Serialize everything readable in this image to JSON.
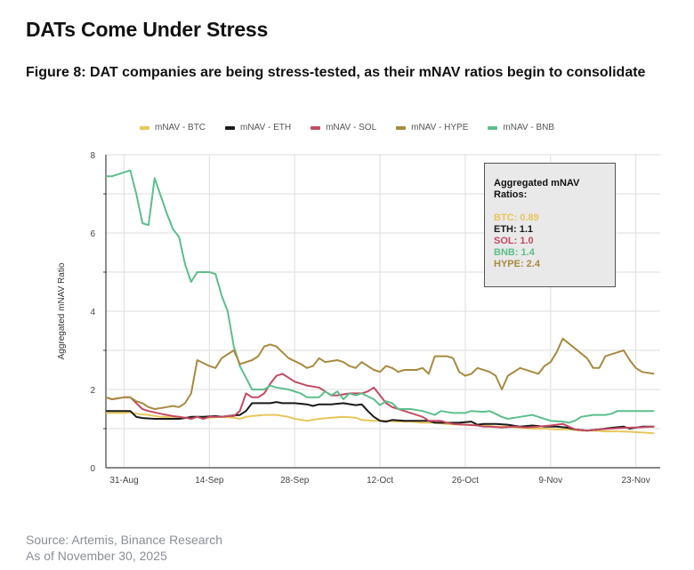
{
  "page": {
    "title": "DATs Come Under Stress",
    "figure_title": "Figure 8: DAT companies are being stress-tested, as their mNAV ratios begin to consolidate",
    "source_line1": "Source: Artemis, Binance Research",
    "source_line2": "As of November 30, 2025"
  },
  "annotation": {
    "title": "Aggregated mNAV Ratios:",
    "lines": [
      {
        "text": "BTC: 0.89",
        "color": "#e8c65a"
      },
      {
        "text": "ETH: 1.1",
        "color": "#1a1a1a"
      },
      {
        "text": "SOL: 1.0",
        "color": "#c44a62"
      },
      {
        "text": "BNB: 1.4",
        "color": "#5cbf8a"
      },
      {
        "text": "HYPE: 2.4",
        "color": "#a88a3e"
      }
    ]
  },
  "chart_data": {
    "type": "line",
    "title": "",
    "xlabel": "",
    "ylabel": "Aggregated mNAV Ratio",
    "ylim": [
      0,
      8
    ],
    "yticks": [
      0,
      2,
      4,
      6,
      8
    ],
    "y_minor_ticks": [
      1,
      3,
      5,
      7
    ],
    "grid": true,
    "legend_position": "top-center",
    "x_base_date": "2025-08-28",
    "x_range_days": [
      0,
      91
    ],
    "xticks": [
      {
        "day": 3,
        "label": "31-Aug"
      },
      {
        "day": 17,
        "label": "14-Sep"
      },
      {
        "day": 31,
        "label": "28-Sep"
      },
      {
        "day": 45,
        "label": "12-Oct"
      },
      {
        "day": 59,
        "label": "26-Oct"
      },
      {
        "day": 73,
        "label": "9-Nov"
      },
      {
        "day": 87,
        "label": "23-Nov"
      }
    ],
    "series": [
      {
        "name": "mNAV - BTC",
        "color": "#e8c65a",
        "days": [
          0,
          3,
          4,
          5,
          7,
          9,
          11,
          13,
          15,
          17,
          19,
          21,
          22,
          23,
          24,
          26,
          28,
          30,
          31,
          33,
          35,
          37,
          39,
          41,
          42,
          44,
          46,
          48,
          50,
          52,
          54,
          56,
          58,
          60,
          62,
          64,
          66,
          68,
          70,
          72,
          74,
          76,
          78,
          80,
          82,
          84,
          86,
          88,
          90
        ],
        "values": [
          1.4,
          1.4,
          1.42,
          1.38,
          1.35,
          1.3,
          1.3,
          1.28,
          1.3,
          1.28,
          1.3,
          1.28,
          1.25,
          1.3,
          1.32,
          1.35,
          1.35,
          1.3,
          1.25,
          1.2,
          1.25,
          1.28,
          1.3,
          1.28,
          1.22,
          1.2,
          1.2,
          1.18,
          1.18,
          1.15,
          1.15,
          1.12,
          1.1,
          1.1,
          1.08,
          1.05,
          1.05,
          1.02,
          1.0,
          1.0,
          0.98,
          0.98,
          0.95,
          0.95,
          0.93,
          0.93,
          0.92,
          0.9,
          0.88
        ]
      },
      {
        "name": "mNAV - ETH",
        "color": "#1a1a1a",
        "days": [
          0,
          3,
          4,
          5,
          6,
          8,
          10,
          12,
          13,
          14,
          16,
          18,
          19,
          20,
          22,
          23,
          24,
          25,
          27,
          28,
          29,
          31,
          33,
          34,
          35,
          37,
          39,
          41,
          42,
          43,
          44,
          45,
          46,
          47,
          49,
          51,
          53,
          54,
          56,
          58,
          60,
          61,
          62,
          64,
          66,
          68,
          70,
          72,
          74,
          76,
          77,
          79,
          81,
          83,
          85,
          86,
          88,
          90
        ],
        "values": [
          1.45,
          1.45,
          1.45,
          1.3,
          1.27,
          1.25,
          1.25,
          1.25,
          1.27,
          1.3,
          1.3,
          1.32,
          1.3,
          1.32,
          1.35,
          1.45,
          1.65,
          1.65,
          1.65,
          1.68,
          1.65,
          1.65,
          1.62,
          1.58,
          1.62,
          1.62,
          1.65,
          1.6,
          1.62,
          1.45,
          1.3,
          1.2,
          1.18,
          1.22,
          1.2,
          1.2,
          1.2,
          1.15,
          1.15,
          1.15,
          1.18,
          1.1,
          1.12,
          1.12,
          1.1,
          1.05,
          1.08,
          1.05,
          1.05,
          1.02,
          0.98,
          0.95,
          0.98,
          1.02,
          1.05,
          1.0,
          1.05,
          1.05
        ]
      },
      {
        "name": "mNAV - SOL",
        "color": "#c44a62",
        "days": [
          0,
          1,
          3,
          4,
          5,
          6,
          7,
          9,
          11,
          12,
          13,
          14,
          15,
          16,
          17,
          19,
          20,
          21,
          22,
          23,
          24,
          25,
          26,
          27,
          28,
          29,
          30,
          31,
          33,
          35,
          36,
          37,
          38,
          40,
          42,
          43,
          44,
          45,
          46,
          47,
          49,
          51,
          52,
          53,
          55,
          56,
          57,
          59,
          61,
          62,
          63,
          65,
          67,
          69,
          71,
          73,
          75,
          76,
          77,
          79,
          81,
          83,
          85,
          87,
          90
        ],
        "values": [
          1.8,
          1.75,
          1.8,
          1.8,
          1.65,
          1.5,
          1.45,
          1.38,
          1.32,
          1.3,
          1.28,
          1.25,
          1.3,
          1.25,
          1.3,
          1.3,
          1.32,
          1.32,
          1.45,
          1.9,
          1.8,
          1.8,
          1.9,
          2.15,
          2.35,
          2.4,
          2.3,
          2.2,
          2.1,
          2.05,
          1.95,
          1.85,
          1.85,
          1.9,
          1.9,
          1.95,
          2.05,
          1.85,
          1.65,
          1.55,
          1.45,
          1.35,
          1.3,
          1.2,
          1.2,
          1.15,
          1.12,
          1.1,
          1.08,
          1.05,
          1.05,
          1.03,
          1.05,
          1.03,
          1.05,
          1.08,
          1.12,
          1.05,
          0.98,
          0.95,
          0.98,
          1.0,
          1.02,
          1.03,
          1.05
        ]
      },
      {
        "name": "mNAV - HYPE",
        "color": "#a88a3e",
        "days": [
          0,
          1,
          3,
          4,
          5,
          6,
          7,
          8,
          10,
          11,
          12,
          13,
          14,
          15,
          17,
          18,
          19,
          20,
          21,
          22,
          24,
          25,
          26,
          27,
          28,
          29,
          30,
          32,
          33,
          34,
          35,
          36,
          38,
          39,
          40,
          41,
          42,
          44,
          45,
          46,
          47,
          48,
          49,
          51,
          52,
          53,
          54,
          56,
          57,
          58,
          59,
          60,
          61,
          63,
          64,
          65,
          66,
          68,
          70,
          71,
          72,
          73,
          74,
          75,
          77,
          79,
          80,
          81,
          82,
          84,
          85,
          86,
          87,
          88,
          90
        ],
        "values": [
          1.8,
          1.75,
          1.8,
          1.8,
          1.7,
          1.65,
          1.55,
          1.5,
          1.55,
          1.58,
          1.55,
          1.65,
          1.9,
          2.75,
          2.6,
          2.55,
          2.8,
          2.9,
          3.0,
          2.65,
          2.75,
          2.85,
          3.1,
          3.15,
          3.1,
          2.95,
          2.8,
          2.65,
          2.55,
          2.6,
          2.8,
          2.7,
          2.75,
          2.7,
          2.6,
          2.55,
          2.7,
          2.5,
          2.45,
          2.6,
          2.55,
          2.45,
          2.5,
          2.5,
          2.55,
          2.4,
          2.85,
          2.85,
          2.8,
          2.45,
          2.35,
          2.4,
          2.55,
          2.45,
          2.35,
          2.0,
          2.35,
          2.55,
          2.45,
          2.4,
          2.6,
          2.7,
          2.95,
          3.3,
          3.05,
          2.8,
          2.55,
          2.55,
          2.85,
          2.95,
          3.0,
          2.75,
          2.55,
          2.45,
          2.4
        ]
      },
      {
        "name": "mNAV - BNB",
        "color": "#5cbf8a",
        "days": [
          0,
          1,
          3,
          4,
          5,
          6,
          7,
          8,
          10,
          11,
          12,
          13,
          14,
          15,
          17,
          18,
          19,
          20,
          21,
          22,
          23,
          24,
          25,
          26,
          27,
          28,
          30,
          32,
          33,
          35,
          36,
          37,
          38,
          39,
          40,
          41,
          42,
          44,
          45,
          46,
          47,
          48,
          50,
          52,
          54,
          55,
          57,
          59,
          60,
          62,
          63,
          65,
          66,
          68,
          70,
          71,
          73,
          75,
          76,
          77,
          78,
          80,
          82,
          83,
          84,
          86,
          88,
          90
        ],
        "values": [
          7.45,
          7.45,
          7.55,
          7.6,
          7.0,
          6.25,
          6.2,
          7.4,
          6.5,
          6.1,
          5.9,
          5.2,
          4.75,
          5.0,
          5.0,
          4.95,
          4.4,
          4.0,
          3.1,
          2.6,
          2.3,
          2.0,
          2.0,
          2.0,
          2.1,
          2.05,
          2.0,
          1.9,
          1.8,
          1.8,
          1.95,
          1.85,
          1.95,
          1.75,
          1.9,
          1.85,
          1.9,
          1.75,
          1.6,
          1.7,
          1.65,
          1.5,
          1.5,
          1.45,
          1.35,
          1.45,
          1.4,
          1.4,
          1.45,
          1.43,
          1.45,
          1.3,
          1.25,
          1.3,
          1.35,
          1.3,
          1.2,
          1.18,
          1.15,
          1.2,
          1.3,
          1.35,
          1.35,
          1.38,
          1.45,
          1.45,
          1.45,
          1.45
        ]
      }
    ]
  }
}
